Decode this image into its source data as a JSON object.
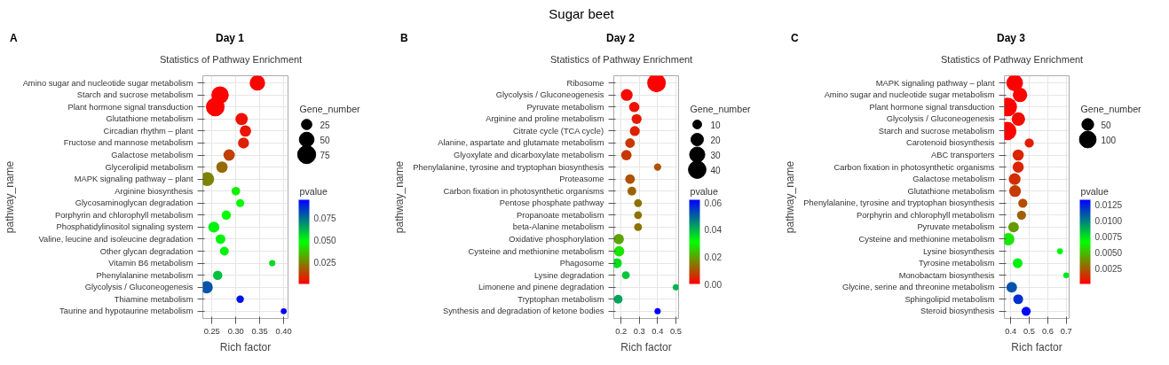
{
  "chart_data": [
    {
      "type": "bubble",
      "title": "Day 1",
      "subtitle": "Statistics of Pathway Enrichment",
      "annotations": [
        "A",
        "Sugar beet"
      ],
      "xlabel": "Rich factor",
      "ylabel": "pathway_name",
      "legend_title": "Gene_number",
      "clabel": "pvalue",
      "orientation": "horizontal",
      "grid": true,
      "categories": [
        "Amino sugar and nucleotide sugar metabolism",
        "Starch and sucrose metabolism",
        "Plant hormone signal transduction",
        "Glutathione metabolism",
        "Circadian rhythm – plant",
        "Fructose and mannose metabolism",
        "Galactose metabolism",
        "Glycerolipid metabolism",
        "MAPK signaling pathway – plant",
        "Arginine biosynthesis",
        "Glycosaminoglycan degradation",
        "Porphyrin and chlorophyll metabolism",
        "Phosphatidylinositol signaling system",
        "Valine, leucine and isoleucine degradation",
        "Other glycan degradation",
        "Vitamin B6 metabolism",
        "Phenylalanine metabolism",
        "Glycolysis / Gluconeogenesis",
        "Thiamine metabolism",
        "Taurine and hypotaurine metabolism"
      ],
      "values": [
        0.345,
        0.267,
        0.257,
        0.312,
        0.32,
        0.316,
        0.286,
        0.271,
        0.24,
        0.3,
        0.309,
        0.28,
        0.254,
        0.268,
        0.276,
        0.376,
        0.262,
        0.239,
        0.309,
        0.4
      ],
      "sizes": [
        55,
        70,
        80,
        35,
        30,
        28,
        30,
        30,
        45,
        17,
        15,
        20,
        28,
        22,
        18,
        9,
        20,
        35,
        13,
        8
      ],
      "size_legend": [
        25,
        50,
        75
      ],
      "cvalues": [
        0.001,
        0.001,
        0.001,
        0.003,
        0.004,
        0.006,
        0.012,
        0.02,
        0.025,
        0.045,
        0.047,
        0.048,
        0.05,
        0.05,
        0.05,
        0.055,
        0.06,
        0.08,
        0.093,
        0.096
      ],
      "clim": [
        0,
        0.096
      ],
      "cticks": [
        {
          "value": 0.025,
          "label": "0.025"
        },
        {
          "value": 0.05,
          "label": "0.050"
        },
        {
          "value": 0.075,
          "label": "0.075"
        }
      ],
      "xlim": [
        0.231,
        0.409
      ],
      "xticks": [
        {
          "value": 0.25,
          "label": "0.25"
        },
        {
          "value": 0.3,
          "label": "0.30"
        },
        {
          "value": 0.35,
          "label": "0.35"
        },
        {
          "value": 0.4,
          "label": "0.40"
        }
      ]
    },
    {
      "type": "bubble",
      "title": "Day 2",
      "subtitle": "Statistics of Pathway Enrichment",
      "annotations": [
        "B"
      ],
      "xlabel": "Rich factor",
      "ylabel": "pathway_name",
      "legend_title": "Gene_number",
      "clabel": "pvalue",
      "orientation": "horizontal",
      "grid": true,
      "categories": [
        "Ribosome",
        "Glycolysis / Gluconeogenesis",
        "Pyruvate metabolism",
        "Arginine and proline metabolism",
        "Citrate cycle (TCA cycle)",
        "Alanine, aspartate and glutamate metabolism",
        "Glyoxylate and dicarboxylate metabolism",
        "Phenylalanine, tyrosine and tryptophan biosynthesis",
        "Proteasome",
        "Carbon fixation in photosynthetic organisms",
        "Pentose phosphate pathway",
        "Propanoate metabolism",
        "beta-Alanine metabolism",
        "Oxidative phosphorylation",
        "Cysteine and methionine metabolism",
        "Phagosome",
        "Lysine degradation",
        "Limonene and pinene degradation",
        "Tryptophan metabolism",
        "Synthesis and degradation of ketone bodies"
      ],
      "values": [
        0.394,
        0.231,
        0.272,
        0.285,
        0.275,
        0.249,
        0.229,
        0.4,
        0.249,
        0.259,
        0.293,
        0.293,
        0.293,
        0.187,
        0.189,
        0.177,
        0.226,
        0.5,
        0.184,
        0.4
      ],
      "sizes": [
        45,
        18,
        14,
        13,
        13,
        12,
        14,
        7,
        12,
        10,
        8,
        8,
        8,
        14,
        14,
        13,
        8,
        5,
        10,
        5
      ],
      "size_legend": [
        10,
        20,
        30,
        40
      ],
      "cvalues": [
        0.0,
        0.001,
        0.002,
        0.003,
        0.004,
        0.007,
        0.007,
        0.01,
        0.01,
        0.012,
        0.014,
        0.014,
        0.014,
        0.02,
        0.028,
        0.035,
        0.038,
        0.04,
        0.042,
        0.062
      ],
      "clim": [
        0,
        0.062
      ],
      "cticks": [
        {
          "value": 0,
          "label": "0.00"
        },
        {
          "value": 0.02,
          "label": "0.02"
        },
        {
          "value": 0.04,
          "label": "0.04"
        },
        {
          "value": 0.06,
          "label": "0.06"
        }
      ],
      "xlim": [
        0.16,
        0.515
      ],
      "xticks": [
        0.2,
        0.3,
        0.4,
        0.5
      ]
    },
    {
      "type": "bubble",
      "title": "Day 3",
      "subtitle": "Statistics of Pathway Enrichment",
      "annotations": [
        "C"
      ],
      "xlabel": "Rich factor",
      "ylabel": "pathway_name",
      "legend_title": "Gene_number",
      "clabel": "pvalue",
      "orientation": "horizontal",
      "grid": true,
      "categories": [
        "MAPK signaling pathway – plant",
        "Amino sugar and nucleotide sugar metabolism",
        "Plant hormone signal transduction",
        "Glycolysis / Gluconeogenesis",
        "Starch and sucrose metabolism",
        "Carotenoid biosynthesis",
        "ABC transporters",
        "Carbon fixation in photosynthetic organisms",
        "Galactose metabolism",
        "Glutathione metabolism",
        "Phenylalanine, tyrosine and tryptophan biosynthesis",
        "Porphyrin and chlorophyll metabolism",
        "Pyruvate metabolism",
        "Cysteine and methionine metabolism",
        "Lysine biosynthesis",
        "Tyrosine metabolism",
        "Monobactam biosynthesis",
        "Glycine, serine and threonine metabolism",
        "Sphingolipid metabolism",
        "Steroid biosynthesis"
      ],
      "values": [
        0.421,
        0.45,
        0.383,
        0.441,
        0.381,
        0.5,
        0.44,
        0.44,
        0.421,
        0.423,
        0.465,
        0.458,
        0.415,
        0.386,
        0.666,
        0.437,
        0.7,
        0.405,
        0.44,
        0.483
      ],
      "sizes": [
        100,
        75,
        125,
        65,
        120,
        30,
        45,
        45,
        50,
        50,
        30,
        30,
        40,
        55,
        13,
        35,
        12,
        40,
        35,
        30
      ],
      "size_legend": [
        50,
        100
      ],
      "cvalues": [
        0.0,
        0.0002,
        0.0001,
        0.0003,
        0.0001,
        0.0008,
        0.0009,
        0.001,
        0.0012,
        0.0015,
        0.002,
        0.0025,
        0.004,
        0.006,
        0.0068,
        0.007,
        0.0072,
        0.011,
        0.012,
        0.013
      ],
      "clim": [
        0,
        0.0132
      ],
      "cticks": [
        {
          "value": 0.0025,
          "label": "0.0025"
        },
        {
          "value": 0.005,
          "label": "0.0050"
        },
        {
          "value": 0.0075,
          "label": "0.0075"
        },
        {
          "value": 0.01,
          "label": "0.0100"
        },
        {
          "value": 0.0125,
          "label": "0.0125"
        }
      ],
      "xlim": [
        0.365,
        0.716
      ],
      "xticks": [
        0.4,
        0.5,
        0.6,
        0.7
      ]
    }
  ]
}
